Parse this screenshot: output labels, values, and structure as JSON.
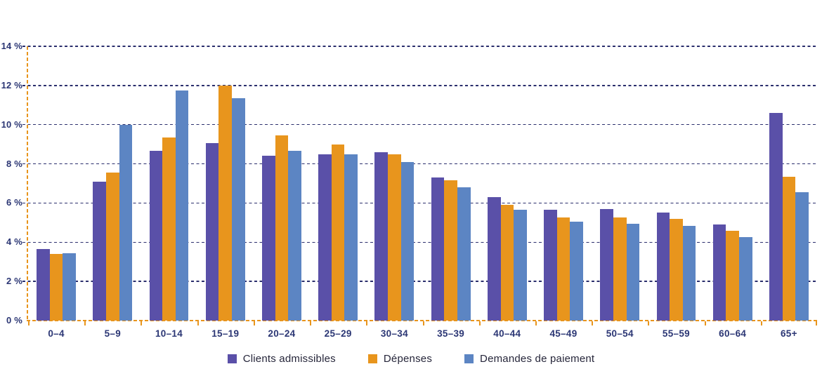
{
  "chart_data": {
    "type": "bar",
    "title": "",
    "xlabel": "",
    "ylabel": "",
    "categories": [
      "0–4",
      "5–9",
      "10–14",
      "15–19",
      "20–24",
      "25–29",
      "30–34",
      "35–39",
      "40–44",
      "45–49",
      "50–54",
      "55–59",
      "60–64",
      "65+"
    ],
    "series": [
      {
        "name": "Clients admissibles",
        "color": "#5A50A8",
        "values": [
          3.65,
          7.1,
          8.65,
          9.05,
          8.4,
          8.5,
          8.6,
          7.3,
          6.3,
          5.65,
          5.7,
          5.5,
          4.9,
          10.6
        ]
      },
      {
        "name": "Dépenses",
        "color": "#E8951D",
        "values": [
          3.4,
          7.55,
          9.35,
          12.0,
          9.45,
          9.0,
          8.5,
          7.15,
          5.9,
          5.25,
          5.25,
          5.2,
          4.6,
          7.35
        ]
      },
      {
        "name": "Demandes de paiement",
        "color": "#5C85C3",
        "values": [
          3.45,
          10.0,
          11.75,
          11.35,
          8.65,
          8.5,
          8.1,
          6.8,
          5.65,
          5.05,
          4.95,
          4.85,
          4.25,
          6.55
        ]
      }
    ],
    "ylim": [
      0,
      14
    ],
    "ytick_values": [
      0,
      2,
      4,
      6,
      8,
      10,
      12,
      14
    ],
    "ytick_labels": [
      "0 %",
      "2 %",
      "4 %",
      "6 %",
      "8 %",
      "10 %",
      "12 %",
      "14 %"
    ],
    "grid": "horizontal-dashed",
    "legend_position": "bottom",
    "colors": {
      "axis": "#E8951D",
      "gridline": "#2B2F6D",
      "tick_label": "#2B3674",
      "legend_text": "#26263A"
    }
  }
}
